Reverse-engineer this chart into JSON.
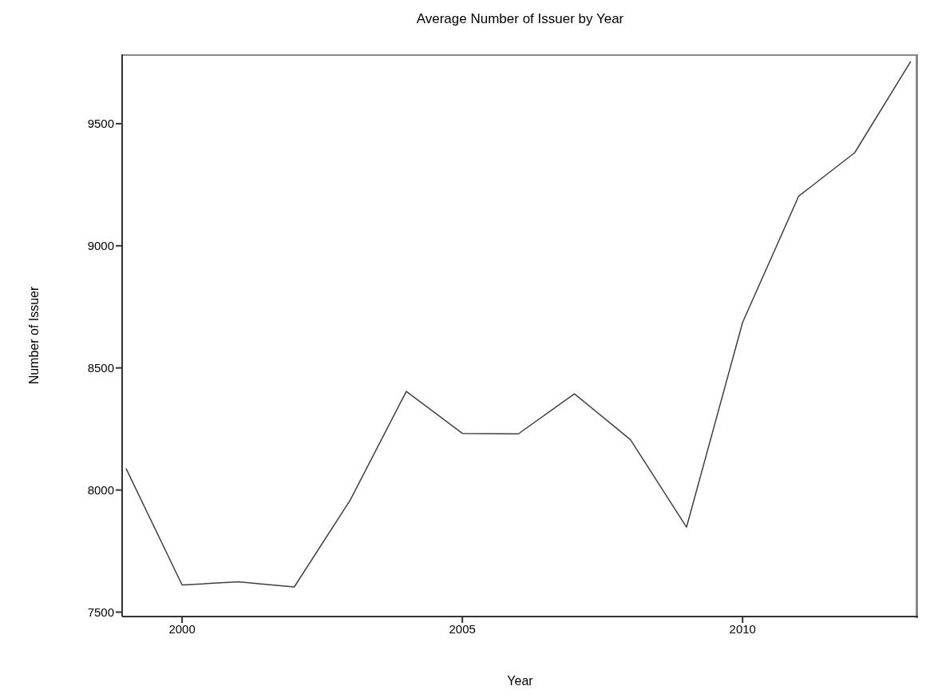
{
  "chart_data": {
    "type": "line",
    "title": "Average Number of Issuer by Year",
    "xlabel": "Year",
    "ylabel": "Number of Issuer",
    "x": [
      1999,
      2000,
      2001,
      2002,
      2003,
      2004,
      2005,
      2006,
      2007,
      2008,
      2009,
      2010,
      2011,
      2012,
      2013
    ],
    "series": [
      {
        "color": "#404040",
        "values": [
          8088,
          7611,
          7624,
          7603,
          7959,
          8404,
          8232,
          8230,
          8394,
          8206,
          7848,
          8686,
          9203,
          9381,
          9755
        ]
      }
    ],
    "xlim": [
      1998.93,
      2013.13
    ],
    "xticks": [
      2000,
      2005,
      2010
    ],
    "ylim": [
      7482,
      9784
    ],
    "yticks": [
      7500,
      8000,
      8500,
      9000,
      9500
    ],
    "grid": false,
    "legend": false,
    "marker": "none",
    "line_style": "solid"
  }
}
